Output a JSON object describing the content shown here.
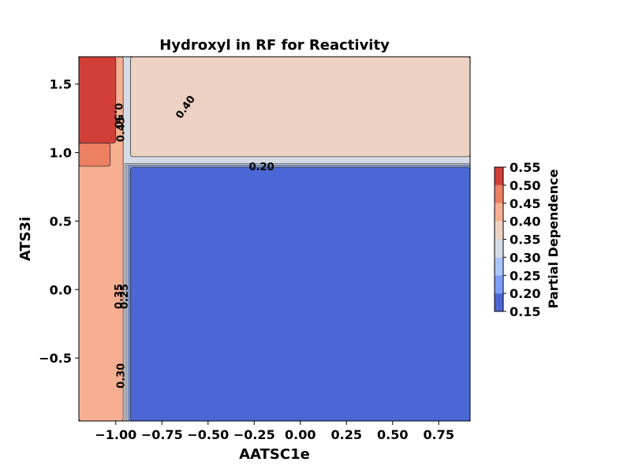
{
  "chart_data": {
    "type": "contour",
    "title": "Hydroxyl in RF for Reactivity",
    "xlabel": "AATSC1e",
    "ylabel": "ATS3i",
    "xlim": [
      -1.2,
      0.92
    ],
    "ylim": [
      -0.96,
      1.7
    ],
    "x_ticks": [
      -1.0,
      -0.75,
      -0.5,
      -0.25,
      0.0,
      0.25,
      0.5,
      0.75
    ],
    "x_tick_labels": [
      "−1.00",
      "−0.75",
      "−0.50",
      "−0.25",
      "0.00",
      "0.25",
      "0.50",
      "0.75"
    ],
    "y_ticks": [
      -0.5,
      0.0,
      0.5,
      1.0,
      1.5
    ],
    "y_tick_labels": [
      "−0.5",
      "0.0",
      "0.5",
      "1.0",
      "1.5"
    ],
    "colorbar": {
      "label": "Partial Dependence",
      "levels": [
        0.15,
        0.2,
        0.25,
        0.3,
        0.35,
        0.4,
        0.45,
        0.5,
        0.55
      ],
      "tick_labels": [
        "0.15",
        "0.20",
        "0.25",
        "0.30",
        "0.35",
        "0.40",
        "0.45",
        "0.50",
        "0.55"
      ],
      "colors": [
        "#4b67d6",
        "#7b9ff9",
        "#a9c6fd",
        "#d4dbe6",
        "#edd1c2",
        "#f7af91",
        "#ed7f63",
        "#d13f38"
      ]
    },
    "regions": [
      {
        "level_band": [
          0.15,
          0.2
        ],
        "x_range": [
          -0.92,
          0.92
        ],
        "y_range": [
          -0.96,
          0.89
        ]
      },
      {
        "level_band": [
          0.35,
          0.4
        ],
        "x_range": [
          -0.92,
          0.92
        ],
        "y_range": [
          0.97,
          1.7
        ]
      },
      {
        "level_band": [
          0.4,
          0.45
        ],
        "x_range": [
          -1.2,
          -0.96
        ],
        "y_range": [
          -0.96,
          1.7
        ]
      },
      {
        "level_band": [
          0.45,
          0.5
        ],
        "x_range": [
          -1.2,
          -1.03
        ],
        "y_range": [
          0.9,
          1.07
        ]
      },
      {
        "level_band": [
          0.5,
          0.55
        ],
        "x_range": [
          -1.2,
          -1.0
        ],
        "y_range": [
          1.07,
          1.7
        ]
      }
    ],
    "contour_labels": [
      {
        "text": "0.50",
        "x": -0.99,
        "y": 1.27,
        "rotation": 90
      },
      {
        "text": "0.45",
        "x": -0.97,
        "y": 1.17,
        "rotation": -90
      },
      {
        "text": "0.40",
        "x": -0.62,
        "y": 1.33,
        "rotation": -55
      },
      {
        "text": "0.20",
        "x": -0.21,
        "y": 0.89,
        "rotation": 0
      },
      {
        "text": "0.35",
        "x": -0.98,
        "y": -0.05,
        "rotation": -90
      },
      {
        "text": "0.25",
        "x": -0.95,
        "y": -0.05,
        "rotation": -90
      },
      {
        "text": "0.30",
        "x": -0.97,
        "y": -0.63,
        "rotation": -90
      }
    ]
  }
}
